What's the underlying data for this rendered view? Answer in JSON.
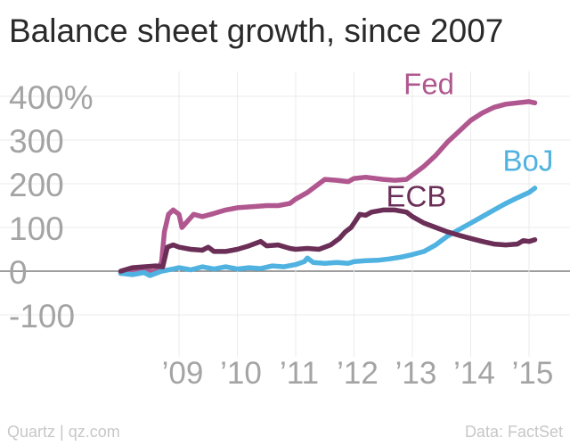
{
  "header": {
    "title": "Balance sheet growth, since 2007"
  },
  "footer": {
    "source_left": "Quartz | qz.com",
    "source_right": "Data: FactSet"
  },
  "colors": {
    "Fed": "#b0578f",
    "BoJ": "#4fb2e0",
    "ECB": "#6a2e57",
    "grid": "#ebebeb",
    "zero": "#7f7f7f",
    "tick": "#a4a4a4"
  },
  "chart_data": {
    "type": "line",
    "title": "Balance sheet growth, since 2007",
    "xlabel": "",
    "ylabel": "",
    "x_ticks": [
      {
        "x": 2009,
        "label": "’09"
      },
      {
        "x": 2010,
        "label": "’10"
      },
      {
        "x": 2011,
        "label": "’11"
      },
      {
        "x": 2012,
        "label": "’12"
      },
      {
        "x": 2013,
        "label": "’13"
      },
      {
        "x": 2014,
        "label": "’14"
      },
      {
        "x": 2015,
        "label": "’15"
      }
    ],
    "y_ticks": [
      {
        "y": 400,
        "label": "400%"
      },
      {
        "y": 300,
        "label": "300"
      },
      {
        "y": 200,
        "label": "200"
      },
      {
        "y": 100,
        "label": "100"
      },
      {
        "y": 0,
        "label": "0"
      },
      {
        "y": -100,
        "label": "-100"
      }
    ],
    "xlim": [
      2007.0,
      2015.2
    ],
    "ylim": [
      -150,
      450
    ],
    "grid": true,
    "series": [
      {
        "name": "Fed",
        "label_anchor": {
          "x": 2012.85,
          "y": 405
        },
        "points": [
          [
            2008.0,
            -5
          ],
          [
            2008.3,
            -2
          ],
          [
            2008.6,
            0
          ],
          [
            2008.7,
            20
          ],
          [
            2008.75,
            90
          ],
          [
            2008.82,
            130
          ],
          [
            2008.9,
            140
          ],
          [
            2009.0,
            130
          ],
          [
            2009.05,
            100
          ],
          [
            2009.15,
            115
          ],
          [
            2009.25,
            130
          ],
          [
            2009.4,
            125
          ],
          [
            2009.6,
            132
          ],
          [
            2009.8,
            140
          ],
          [
            2010.0,
            145
          ],
          [
            2010.3,
            148
          ],
          [
            2010.5,
            150
          ],
          [
            2010.7,
            150
          ],
          [
            2010.9,
            155
          ],
          [
            2011.0,
            165
          ],
          [
            2011.2,
            180
          ],
          [
            2011.4,
            200
          ],
          [
            2011.5,
            210
          ],
          [
            2011.7,
            208
          ],
          [
            2011.9,
            205
          ],
          [
            2012.0,
            212
          ],
          [
            2012.2,
            215
          ],
          [
            2012.5,
            210
          ],
          [
            2012.7,
            208
          ],
          [
            2012.9,
            210
          ],
          [
            2013.0,
            220
          ],
          [
            2013.2,
            240
          ],
          [
            2013.4,
            265
          ],
          [
            2013.6,
            295
          ],
          [
            2013.8,
            320
          ],
          [
            2014.0,
            345
          ],
          [
            2014.2,
            362
          ],
          [
            2014.4,
            375
          ],
          [
            2014.6,
            382
          ],
          [
            2014.8,
            385
          ],
          [
            2015.0,
            388
          ],
          [
            2015.1,
            385
          ]
        ]
      },
      {
        "name": "BoJ",
        "label_anchor": {
          "x": 2014.55,
          "y": 230
        },
        "points": [
          [
            2008.0,
            -5
          ],
          [
            2008.2,
            -8
          ],
          [
            2008.4,
            -3
          ],
          [
            2008.5,
            -10
          ],
          [
            2008.7,
            0
          ],
          [
            2008.9,
            5
          ],
          [
            2009.0,
            8
          ],
          [
            2009.2,
            3
          ],
          [
            2009.4,
            10
          ],
          [
            2009.6,
            5
          ],
          [
            2009.8,
            10
          ],
          [
            2010.0,
            5
          ],
          [
            2010.2,
            8
          ],
          [
            2010.4,
            6
          ],
          [
            2010.6,
            12
          ],
          [
            2010.8,
            10
          ],
          [
            2011.0,
            15
          ],
          [
            2011.15,
            22
          ],
          [
            2011.2,
            30
          ],
          [
            2011.3,
            20
          ],
          [
            2011.5,
            18
          ],
          [
            2011.7,
            20
          ],
          [
            2011.9,
            18
          ],
          [
            2012.0,
            22
          ],
          [
            2012.2,
            24
          ],
          [
            2012.4,
            25
          ],
          [
            2012.6,
            28
          ],
          [
            2012.8,
            32
          ],
          [
            2013.0,
            38
          ],
          [
            2013.2,
            45
          ],
          [
            2013.4,
            60
          ],
          [
            2013.6,
            80
          ],
          [
            2013.8,
            95
          ],
          [
            2014.0,
            110
          ],
          [
            2014.2,
            125
          ],
          [
            2014.4,
            140
          ],
          [
            2014.6,
            155
          ],
          [
            2014.8,
            168
          ],
          [
            2015.0,
            180
          ],
          [
            2015.1,
            190
          ]
        ]
      },
      {
        "name": "ECB",
        "label_anchor": {
          "x": 2012.55,
          "y": 148
        },
        "points": [
          [
            2008.0,
            0
          ],
          [
            2008.2,
            8
          ],
          [
            2008.4,
            10
          ],
          [
            2008.6,
            12
          ],
          [
            2008.72,
            10
          ],
          [
            2008.8,
            55
          ],
          [
            2008.9,
            60
          ],
          [
            2009.0,
            55
          ],
          [
            2009.2,
            50
          ],
          [
            2009.4,
            48
          ],
          [
            2009.5,
            55
          ],
          [
            2009.6,
            45
          ],
          [
            2009.8,
            45
          ],
          [
            2010.0,
            50
          ],
          [
            2010.2,
            58
          ],
          [
            2010.4,
            68
          ],
          [
            2010.5,
            58
          ],
          [
            2010.7,
            60
          ],
          [
            2010.9,
            52
          ],
          [
            2011.0,
            50
          ],
          [
            2011.2,
            52
          ],
          [
            2011.4,
            50
          ],
          [
            2011.6,
            60
          ],
          [
            2011.75,
            75
          ],
          [
            2011.85,
            90
          ],
          [
            2011.95,
            100
          ],
          [
            2012.0,
            110
          ],
          [
            2012.1,
            130
          ],
          [
            2012.2,
            128
          ],
          [
            2012.3,
            135
          ],
          [
            2012.5,
            140
          ],
          [
            2012.7,
            140
          ],
          [
            2012.9,
            135
          ],
          [
            2013.0,
            125
          ],
          [
            2013.2,
            110
          ],
          [
            2013.4,
            100
          ],
          [
            2013.6,
            90
          ],
          [
            2013.8,
            82
          ],
          [
            2014.0,
            75
          ],
          [
            2014.2,
            68
          ],
          [
            2014.4,
            62
          ],
          [
            2014.6,
            60
          ],
          [
            2014.8,
            62
          ],
          [
            2014.9,
            70
          ],
          [
            2015.0,
            68
          ],
          [
            2015.1,
            72
          ]
        ]
      }
    ]
  }
}
